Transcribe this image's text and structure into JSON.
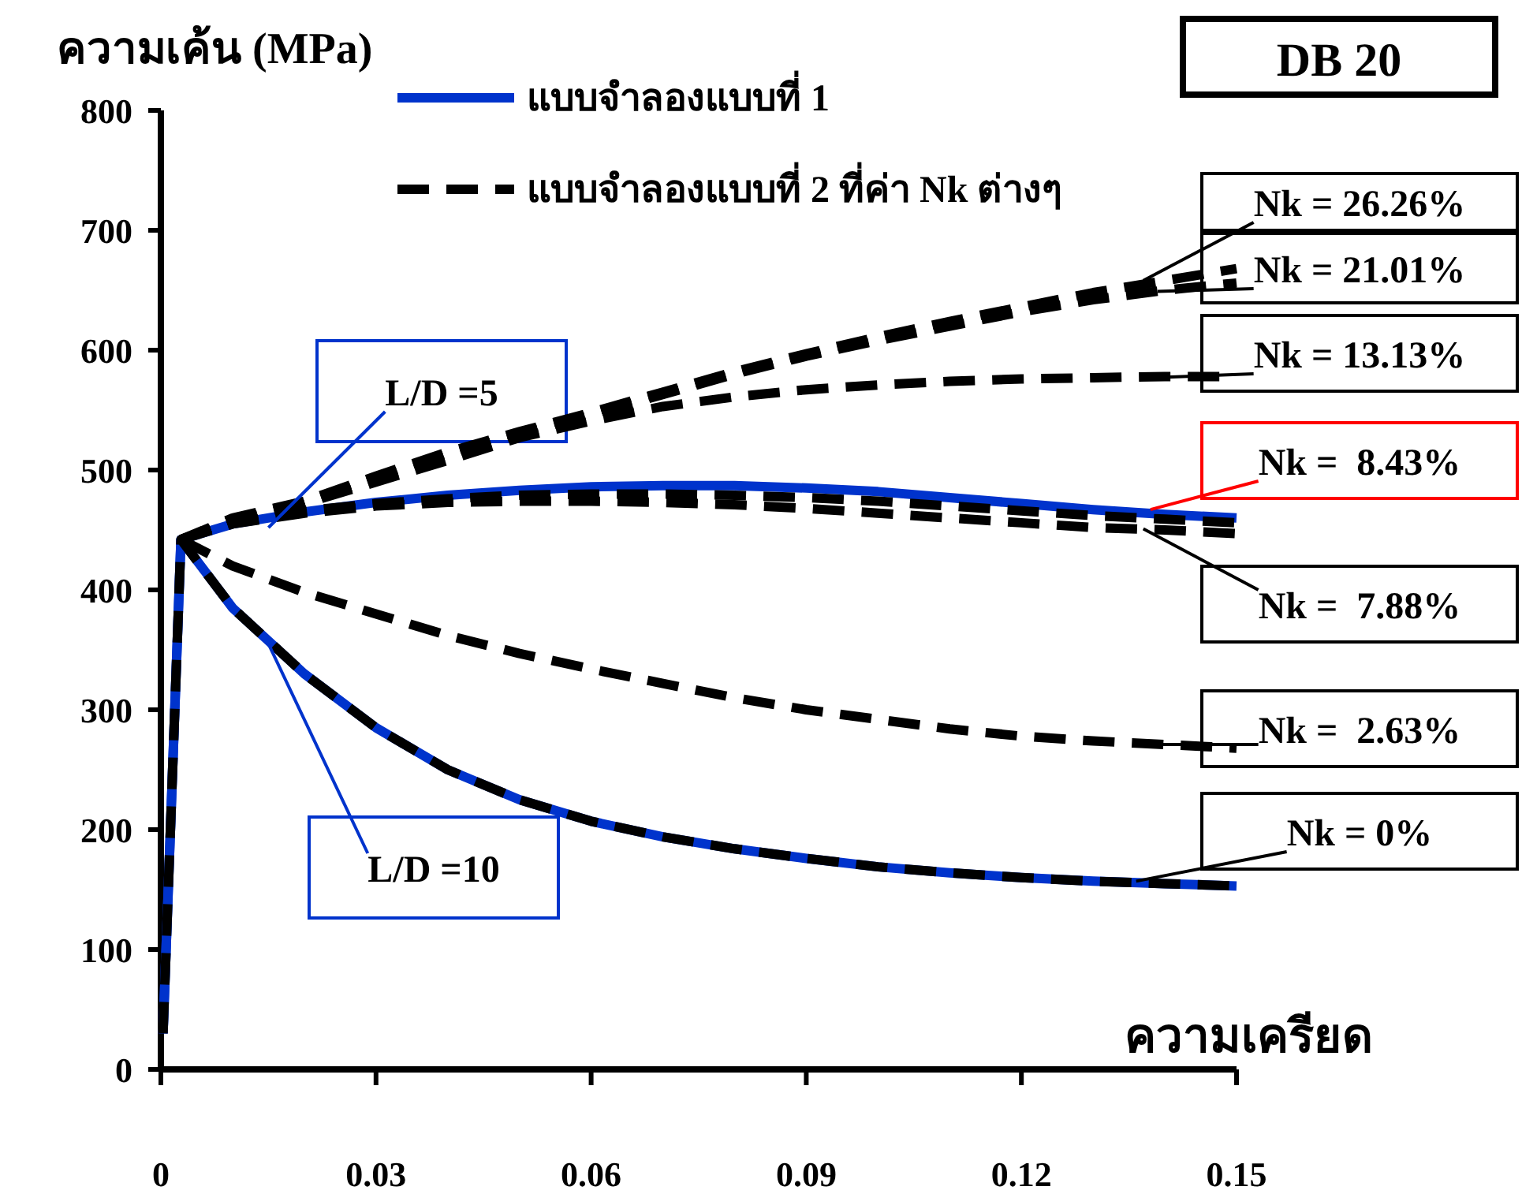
{
  "chart_data": {
    "type": "line",
    "title": "DB 20",
    "ylabel": "ความเค้น (MPa)",
    "xlabel": "ความเครียด",
    "xlim": [
      0,
      0.15
    ],
    "xticks": [
      0,
      0.03,
      0.06,
      0.09,
      0.12,
      0.15
    ],
    "ylim": [
      0,
      800
    ],
    "yticks": [
      0,
      100,
      200,
      300,
      400,
      500,
      600,
      700,
      800
    ],
    "grid": false,
    "legend": "top",
    "marker": "none",
    "series": [
      {
        "name": "แบบจำลองแบบที่ 1",
        "color": "#0033cc",
        "line_style": "solid",
        "x": [
          0.0003,
          0.0028,
          0.01,
          0.02,
          0.03,
          0.04,
          0.05,
          0.06,
          0.07,
          0.08,
          0.09,
          0.1,
          0.11,
          0.12,
          0.13,
          0.14,
          0.15
        ],
        "values": [
          30,
          442,
          455,
          465,
          473,
          479,
          483,
          486,
          487,
          487,
          485,
          482,
          477,
          472,
          467,
          463,
          460
        ]
      },
      {
        "color": "#0033cc",
        "line_style": "solid",
        "x": [
          0.0003,
          0.0028,
          0.01,
          0.02,
          0.03,
          0.04,
          0.05,
          0.06,
          0.07,
          0.08,
          0.09,
          0.1,
          0.11,
          0.12,
          0.13,
          0.14,
          0.15
        ],
        "values": [
          30,
          442,
          385,
          330,
          285,
          250,
          225,
          207,
          194,
          184,
          176,
          169,
          164,
          160,
          157,
          155,
          153
        ]
      },
      {
        "name": "แบบจำลองแบบที่ 2 ที่ค่า Nk ต่างๆ",
        "color": "#000000",
        "line_style": "dashed",
        "x": [
          0.0003,
          0.0028,
          0.01,
          0.02,
          0.03,
          0.04,
          0.05,
          0.06,
          0.07,
          0.08,
          0.09,
          0.1,
          0.11,
          0.12,
          0.13,
          0.14,
          0.15
        ],
        "values": [
          30,
          442,
          385,
          330,
          285,
          250,
          225,
          207,
          194,
          184,
          176,
          169,
          164,
          160,
          157,
          155,
          153
        ]
      },
      {
        "color": "#000000",
        "line_style": "dashed",
        "x": [
          0.0028,
          0.01,
          0.02,
          0.03,
          0.04,
          0.05,
          0.06,
          0.07,
          0.08,
          0.09,
          0.1,
          0.11,
          0.12,
          0.13,
          0.14,
          0.15
        ],
        "values": [
          442,
          420,
          398,
          380,
          362,
          347,
          334,
          322,
          310,
          300,
          292,
          284,
          278,
          274,
          271,
          268
        ]
      },
      {
        "color": "#000000",
        "line_style": "dashed",
        "x": [
          0.0028,
          0.01,
          0.02,
          0.03,
          0.04,
          0.05,
          0.06,
          0.07,
          0.08,
          0.09,
          0.1,
          0.11,
          0.12,
          0.13,
          0.14,
          0.15
        ],
        "values": [
          442,
          455,
          464,
          470,
          473,
          474,
          474,
          473,
          471,
          468,
          464,
          460,
          456,
          452,
          450,
          447
        ]
      },
      {
        "color": "#000000",
        "line_style": "dashed",
        "x": [
          0.0028,
          0.01,
          0.02,
          0.03,
          0.04,
          0.05,
          0.06,
          0.07,
          0.08,
          0.09,
          0.1,
          0.11,
          0.12,
          0.13,
          0.14,
          0.15
        ],
        "values": [
          442,
          456,
          466,
          472,
          476,
          479,
          480,
          480,
          479,
          477,
          474,
          470,
          466,
          462,
          459,
          456
        ]
      },
      {
        "color": "#000000",
        "line_style": "dashed",
        "x": [
          0.0028,
          0.01,
          0.02,
          0.03,
          0.04,
          0.05,
          0.06,
          0.07,
          0.08,
          0.09,
          0.1,
          0.11,
          0.12,
          0.13,
          0.14,
          0.15
        ],
        "values": [
          442,
          458,
          472,
          490,
          508,
          527,
          541,
          553,
          561,
          567,
          571,
          574,
          576,
          577,
          578,
          578
        ]
      },
      {
        "color": "#000000",
        "line_style": "dashed",
        "x": [
          0.0028,
          0.01,
          0.02,
          0.03,
          0.04,
          0.05,
          0.06,
          0.07,
          0.08,
          0.09,
          0.1,
          0.11,
          0.12,
          0.13,
          0.14,
          0.15
        ],
        "values": [
          442,
          458,
          472,
          493,
          513,
          530,
          546,
          563,
          580,
          595,
          608,
          620,
          632,
          642,
          650,
          656
        ]
      },
      {
        "color": "#000000",
        "line_style": "dashed",
        "x": [
          0.0028,
          0.01,
          0.02,
          0.03,
          0.04,
          0.05,
          0.06,
          0.07,
          0.08,
          0.09,
          0.1,
          0.11,
          0.12,
          0.13,
          0.14,
          0.15
        ],
        "values": [
          442,
          460,
          474,
          495,
          515,
          532,
          548,
          565,
          582,
          597,
          611,
          624,
          636,
          648,
          658,
          668
        ]
      }
    ],
    "annotations": [
      {
        "text": "L/D =5",
        "x": 0.015,
        "y": 452
      },
      {
        "text": "L/D =10",
        "x": 0.015,
        "y": 355
      },
      {
        "text": "Nk = 26.26%",
        "x": 0.137,
        "y": 658
      },
      {
        "text": "Nk = 21.01%",
        "x": 0.139,
        "y": 649
      },
      {
        "text": "Nk = 13.13%",
        "x": 0.138,
        "y": 577
      },
      {
        "text": "Nk =  8.43%",
        "x": 0.138,
        "y": 467
      },
      {
        "text": "Nk =  7.88%",
        "x": 0.137,
        "y": 451
      },
      {
        "text": "Nk =  2.63%",
        "x": 0.138,
        "y": 271
      },
      {
        "text": "Nk = 0%",
        "x": 0.136,
        "y": 157
      }
    ]
  }
}
